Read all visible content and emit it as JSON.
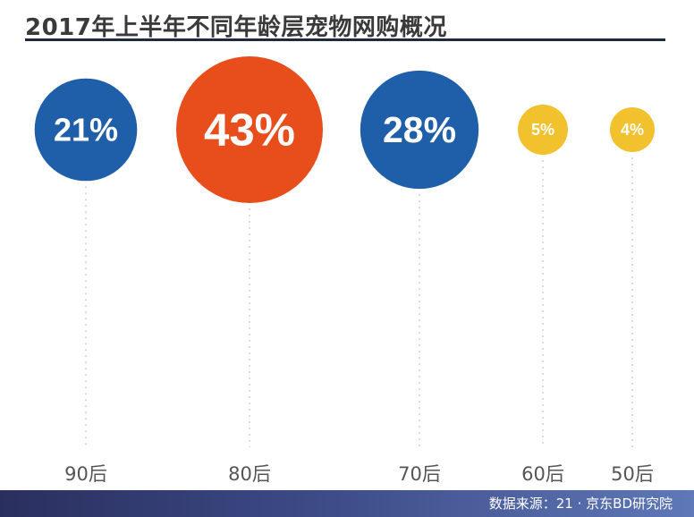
{
  "title": "2017年上半年不同年龄层宠物网购概况",
  "source": "数据来源：21 · 京东BD研究院",
  "colors": {
    "blue": "#1f5ea8",
    "orange": "#e84e1b",
    "yellow": "#f2c12e",
    "footer_dark": "#2a2f5e",
    "footer_light": "#5f78b7"
  },
  "chart_data": {
    "type": "bubble",
    "categories": [
      "90后",
      "80后",
      "70后",
      "60后",
      "50后"
    ],
    "values": [
      21,
      43,
      28,
      5,
      4
    ],
    "value_labels": [
      "21%",
      "43%",
      "28%",
      "5%",
      "4%"
    ],
    "colors": [
      "#1f5ea8",
      "#e84e1b",
      "#1f5ea8",
      "#f2c12e",
      "#f2c12e"
    ],
    "unit": "%"
  }
}
